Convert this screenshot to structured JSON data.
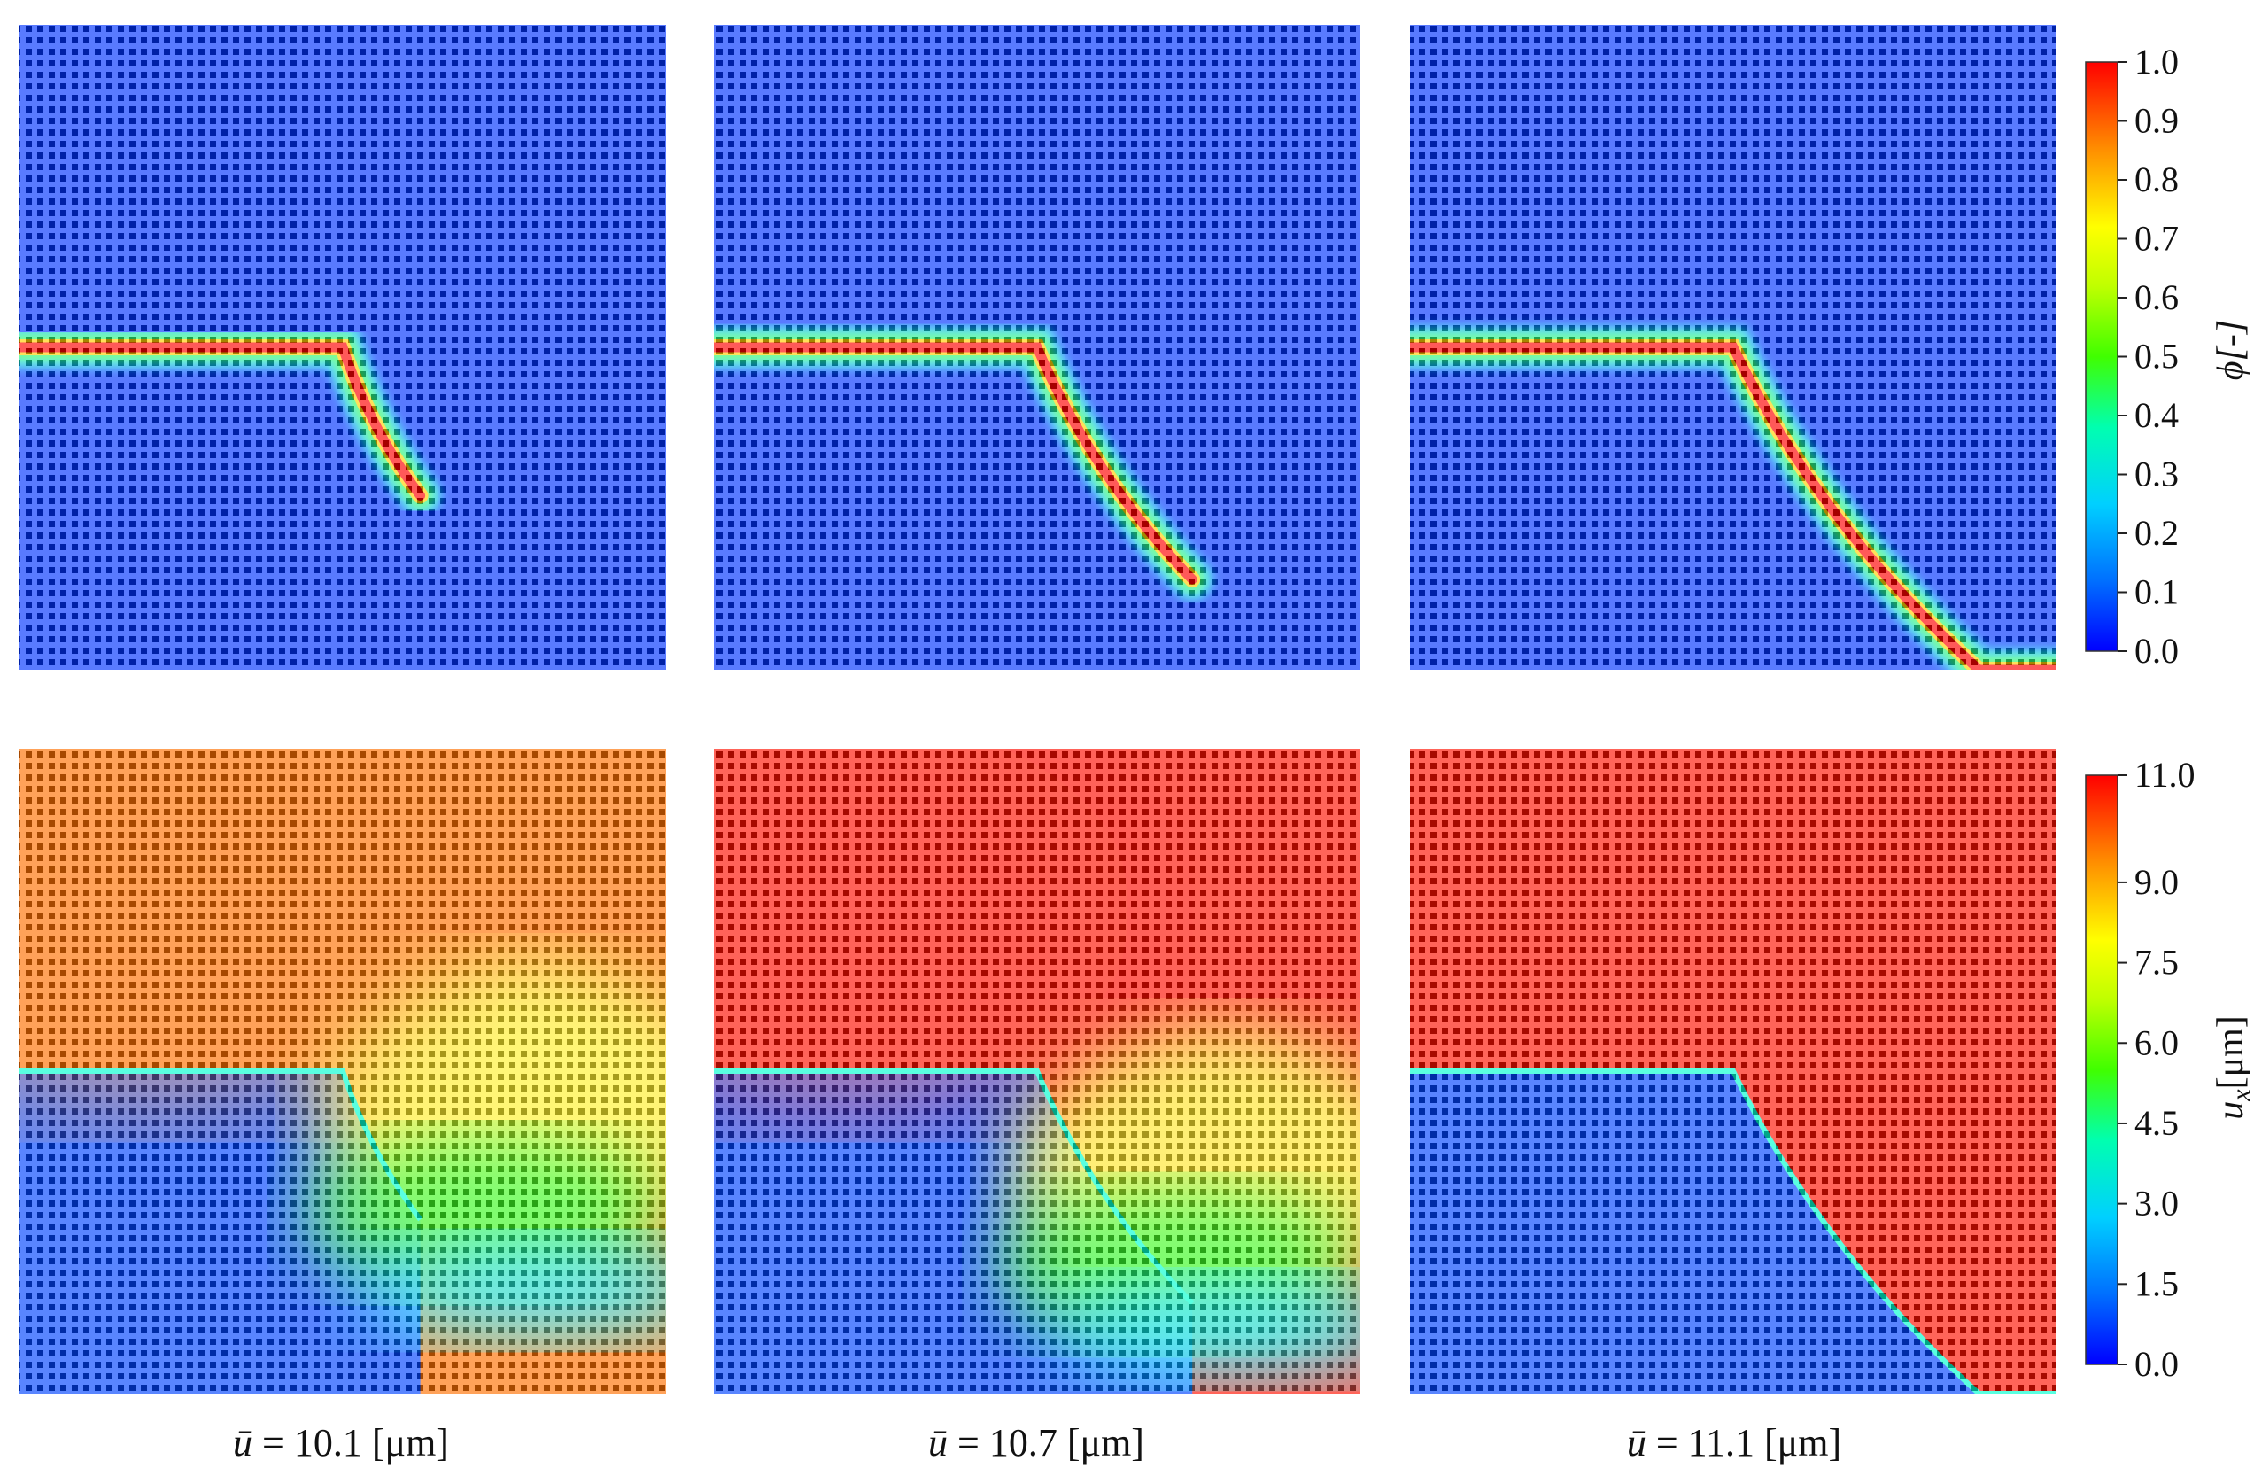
{
  "figure": {
    "columns": [
      {
        "u_value": 10.1,
        "label_value": "10.1",
        "label_unit": "[μm]",
        "crack_tip": [
          0.62,
          0.73
        ]
      },
      {
        "u_value": 10.7,
        "label_value": "10.7",
        "label_unit": "[μm]",
        "crack_tip": [
          0.74,
          0.86
        ]
      },
      {
        "u_value": 11.1,
        "label_value": "11.1",
        "label_unit": "[μm]",
        "crack_tip": [
          0.88,
          1.0
        ]
      }
    ],
    "u_symbol": "ū",
    "equals": "=",
    "phi_colorbar": {
      "title": "ϕ[-]",
      "ticks": [
        "1.0",
        "0.9",
        "0.8",
        "0.7",
        "0.6",
        "0.5",
        "0.4",
        "0.3",
        "0.2",
        "0.1",
        "0.0"
      ],
      "min": 0.0,
      "max": 1.0
    },
    "ux_colorbar": {
      "title": "u",
      "title_sub": "x",
      "title_unit": "[μm]",
      "ticks": [
        "11.0",
        "9.0",
        "7.5",
        "6.0",
        "4.5",
        "3.0",
        "1.5",
        "0.0"
      ],
      "tick_values": [
        11.0,
        9.0,
        7.5,
        6.0,
        4.5,
        3.0,
        1.5,
        0.0
      ],
      "min": 0.0,
      "max": 11.0
    },
    "colormap": [
      "#0000ff",
      "#0090ff",
      "#00e0ff",
      "#00ff80",
      "#a0ff00",
      "#ffff00",
      "#ffa000",
      "#ff4000",
      "#ff0000"
    ]
  }
}
